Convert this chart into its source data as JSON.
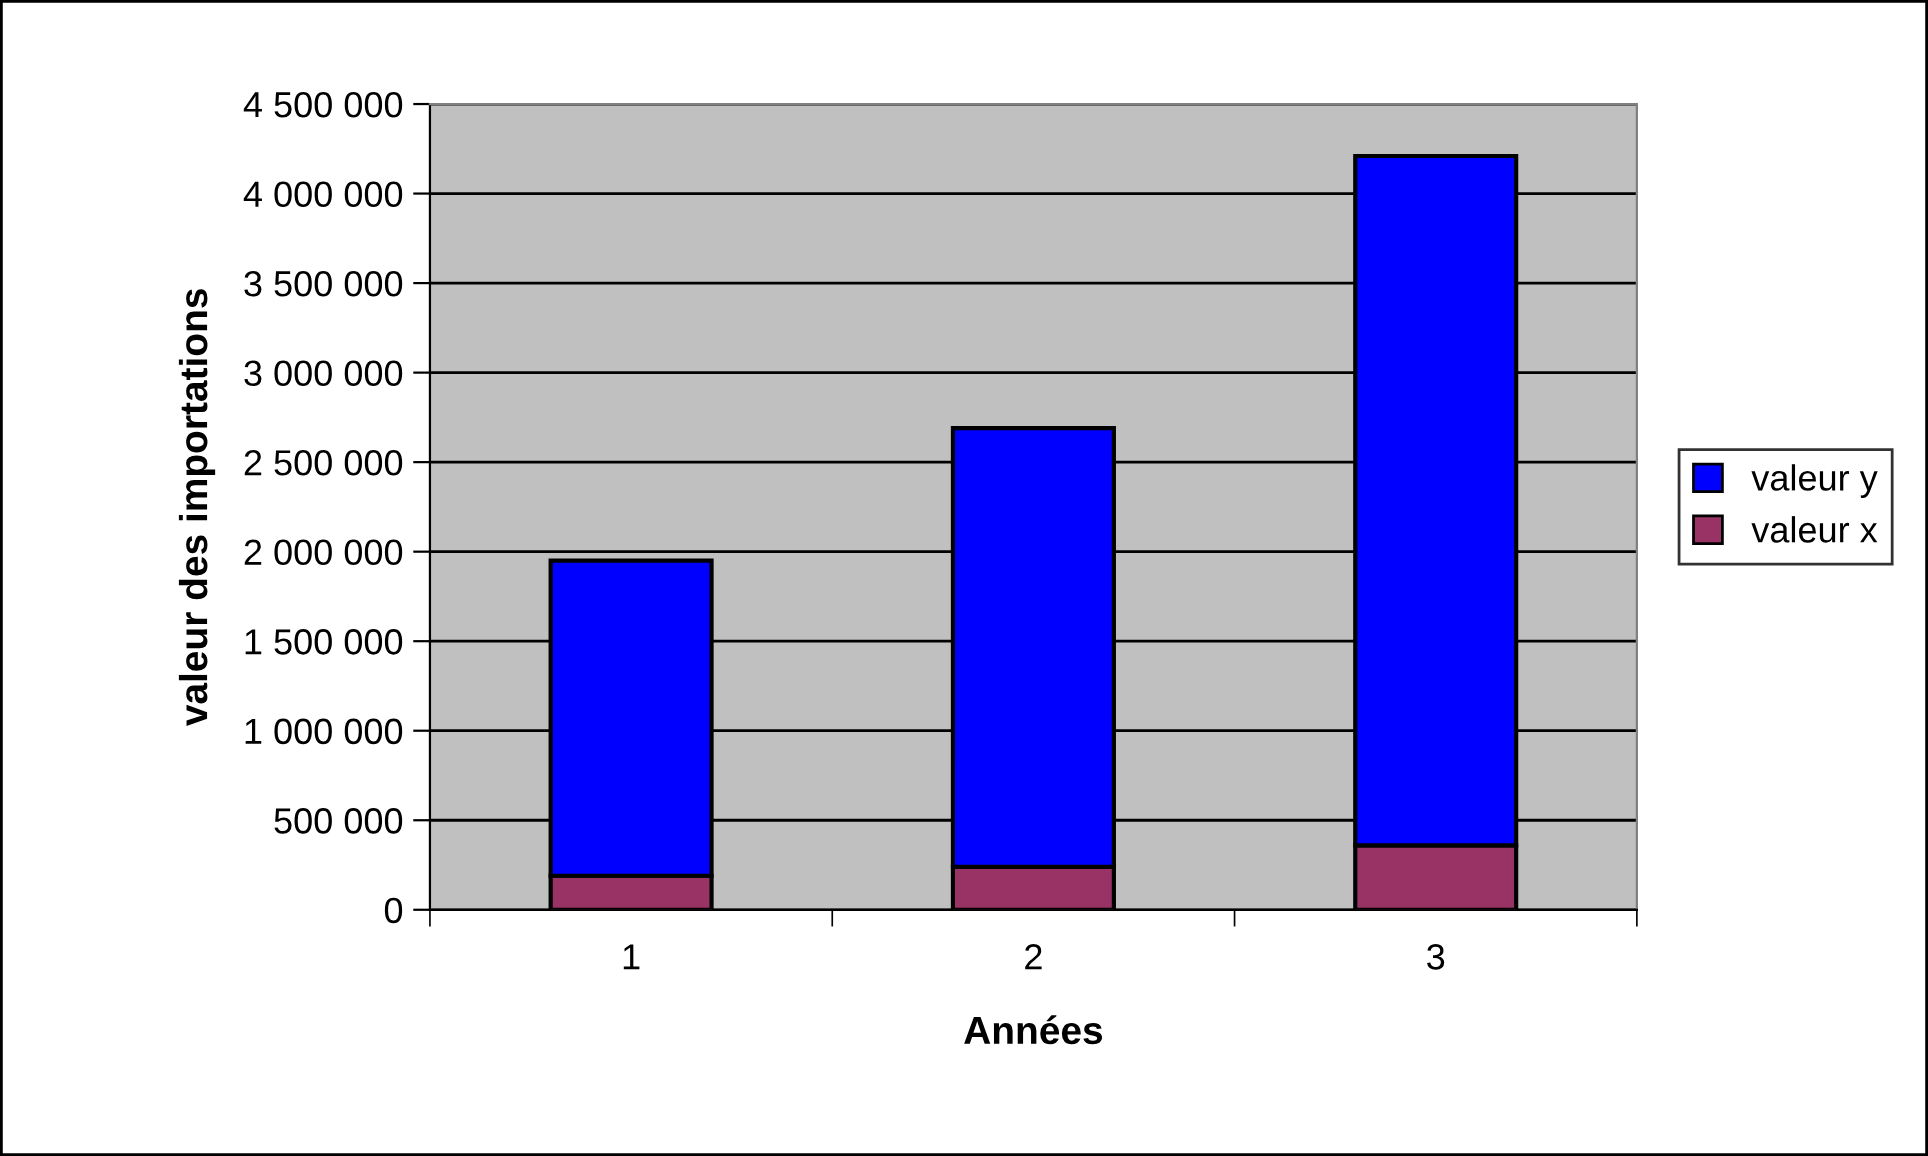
{
  "chart_data": {
    "type": "bar",
    "stacked": true,
    "xlabel": "Années",
    "ylabel": "valeur des importations",
    "categories": [
      "1",
      "2",
      "3"
    ],
    "series": [
      {
        "name": "valeur x",
        "color": "#993366",
        "values": [
          190000,
          240000,
          360000
        ]
      },
      {
        "name": "valeur y",
        "color": "#0000ff",
        "values": [
          1760000,
          2450000,
          3850000
        ]
      }
    ],
    "ylim": [
      0,
      4500000
    ],
    "yticks": [
      {
        "value": 0,
        "label": "0"
      },
      {
        "value": 500000,
        "label": "500 000"
      },
      {
        "value": 1000000,
        "label": "1 000 000"
      },
      {
        "value": 1500000,
        "label": "1 500 000"
      },
      {
        "value": 2000000,
        "label": "2 000 000"
      },
      {
        "value": 2500000,
        "label": "2 500 000"
      },
      {
        "value": 3000000,
        "label": "3 000 000"
      },
      {
        "value": 3500000,
        "label": "3 500 000"
      },
      {
        "value": 4000000,
        "label": "4 000 000"
      },
      {
        "value": 4500000,
        "label": "4 500 000"
      }
    ],
    "grid": "y",
    "legend": "right"
  }
}
